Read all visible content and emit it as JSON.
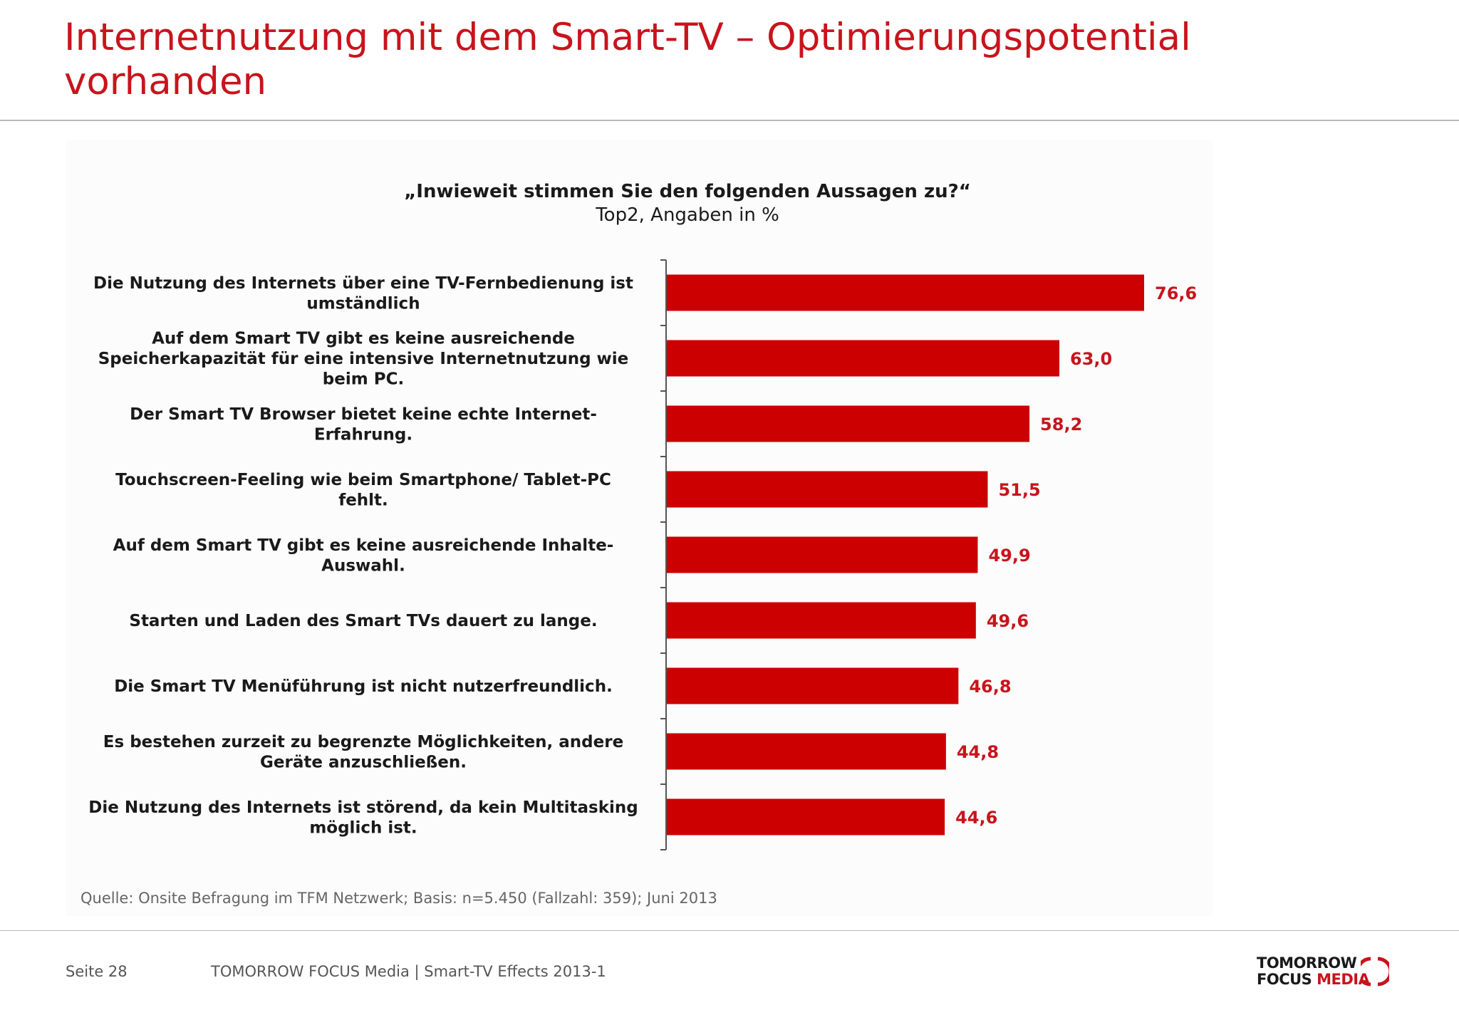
{
  "slide": {
    "title": "Internetnutzung mit dem Smart-TV – Optimierungspotential\nvorhanden",
    "source": "Quelle: Onsite Befragung im TFM Netzwerk; Basis: n=5.450 (Fallzahl: 359); Juni 2013",
    "page": "Seite 28",
    "footer": "TOMORROW FOCUS Media  |  Smart-TV Effects 2013-1",
    "logo_line1": "TOMORROW",
    "logo_line2_a": "FOCUS",
    "logo_line2_b": "MEDIA"
  },
  "colors": {
    "accent": "#c8141c",
    "bar": "#cc0000"
  },
  "chart_data": {
    "type": "bar",
    "orientation": "horizontal",
    "title": "„Inwieweit stimmen Sie den folgenden Aussagen zu?“",
    "subtitle": "Top2, Angaben in %",
    "categories": [
      [
        "Die Nutzung des Internets über eine TV-Fernbedienung ist",
        "umständlich"
      ],
      [
        "Auf dem Smart TV gibt es keine ausreichende",
        "Speicherkapazität für eine intensive Internetnutzung wie",
        "beim PC."
      ],
      [
        "Der Smart TV Browser bietet keine echte Internet-",
        "Erfahrung."
      ],
      [
        "Touchscreen-Feeling wie beim Smartphone/ Tablet-PC",
        "fehlt."
      ],
      [
        "Auf dem Smart TV gibt es keine ausreichende Inhalte-",
        "Auswahl."
      ],
      [
        "Starten und Laden des Smart TVs dauert zu lange."
      ],
      [
        "Die Smart TV Menüführung ist nicht nutzerfreundlich."
      ],
      [
        "Es bestehen zurzeit zu begrenzte Möglichkeiten, andere",
        "Geräte anzuschließen."
      ],
      [
        "Die Nutzung des Internets ist störend, da kein Multitasking",
        "möglich ist."
      ]
    ],
    "values": [
      76.6,
      63.0,
      58.2,
      51.5,
      49.9,
      49.6,
      46.8,
      44.8,
      44.6
    ],
    "value_labels": [
      "76,6",
      "63,0",
      "58,2",
      "51,5",
      "49,9",
      "49,6",
      "46,8",
      "44,8",
      "44,6"
    ],
    "xlim": [
      0,
      100
    ],
    "grid": false,
    "legend": "none"
  }
}
